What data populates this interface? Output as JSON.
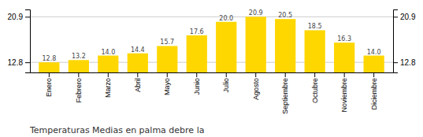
{
  "chart_data": {
    "type": "bar",
    "title": "Temperaturas Medias en palma debre la",
    "categories": [
      "Enero",
      "Febrero",
      "Marzo",
      "Abril",
      "Mayo",
      "Junio",
      "Julio",
      "Agosto",
      "Septiembre",
      "Octubre",
      "Noviembre",
      "Diciembre"
    ],
    "values": [
      12.8,
      13.2,
      14.0,
      14.4,
      15.7,
      17.6,
      20.0,
      20.9,
      20.5,
      18.5,
      16.3,
      14.0
    ],
    "value_labels": [
      "12.8",
      "13.2",
      "14.0",
      "14.4",
      "15.7",
      "17.6",
      "20.0",
      "20.9",
      "20.5",
      "18.5",
      "16.3",
      "14.0"
    ],
    "color": "#FFD700",
    "ylim": [
      11.0,
      22.2
    ],
    "yticks": [
      12.8,
      20.9
    ],
    "y2lim": [
      11.0,
      22.2
    ],
    "y2ticks": [
      12.8,
      20.9
    ],
    "grid": true,
    "data_labels": true
  }
}
